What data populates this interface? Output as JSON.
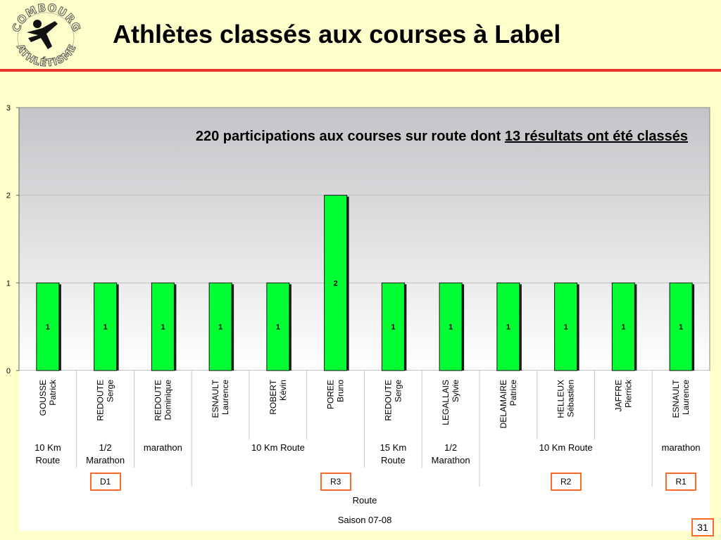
{
  "slide": {
    "title": "Athlètes classés aux courses à Label",
    "logo_text": "COMBOURG ATHLÉTISME",
    "annotation_plain": "220 participations aux courses sur route dont ",
    "annotation_underlined": "13 résultats ont été classés",
    "page_number": "31",
    "colors": {
      "rule": "#e8342a",
      "bar": "#00ff33",
      "background": "#ffffcc",
      "code_border": "#ff6a2a"
    }
  },
  "chart_data": {
    "type": "bar",
    "ylim": [
      0,
      3
    ],
    "yticks": [
      0,
      1,
      2,
      3
    ],
    "grid": true,
    "athletes": [
      {
        "last": "GOUSSE",
        "first": "Patrick",
        "value": 1
      },
      {
        "last": "REDOUTE",
        "first": "Serge",
        "value": 1
      },
      {
        "last": "REDOUTE",
        "first": "Dominique",
        "value": 1
      },
      {
        "last": "ESNAULT",
        "first": "Laurence",
        "value": 1
      },
      {
        "last": "ROBERT",
        "first": "Kévin",
        "value": 1
      },
      {
        "last": "POREE",
        "first": "Bruno",
        "value": 2
      },
      {
        "last": "REDOUTE",
        "first": "Serge",
        "value": 1
      },
      {
        "last": "LEGALLAIS",
        "first": "Sylvie",
        "value": 1
      },
      {
        "last": "DELAMAIRE",
        "first": "Patrice",
        "value": 1
      },
      {
        "last": "HELLEUX",
        "first": "Sébastien",
        "value": 1
      },
      {
        "last": "JAFFRE",
        "first": "Pierrick",
        "value": 1
      },
      {
        "last": "ESNAULT",
        "first": "Laurence",
        "value": 1
      }
    ],
    "race_groups": [
      {
        "lines": [
          "10 Km",
          "Route"
        ],
        "start": 0,
        "end": 0
      },
      {
        "lines": [
          "1/2",
          "Marathon"
        ],
        "start": 1,
        "end": 1
      },
      {
        "lines": [
          "marathon"
        ],
        "start": 2,
        "end": 2
      },
      {
        "lines": [
          "10 Km Route"
        ],
        "start": 3,
        "end": 5
      },
      {
        "lines": [
          "15 Km",
          "Route"
        ],
        "start": 6,
        "end": 6
      },
      {
        "lines": [
          "1/2",
          "Marathon"
        ],
        "start": 7,
        "end": 7
      },
      {
        "lines": [
          "10 Km Route"
        ],
        "start": 8,
        "end": 10
      },
      {
        "lines": [
          "marathon"
        ],
        "start": 11,
        "end": 11
      }
    ],
    "label_groups": [
      {
        "label": "D1",
        "start": 0,
        "end": 2
      },
      {
        "label": "R3",
        "start": 3,
        "end": 7
      },
      {
        "label": "R2",
        "start": 8,
        "end": 10
      },
      {
        "label": "R1",
        "start": 11,
        "end": 11
      }
    ],
    "category_level": "Route",
    "season": "Saison 07-08"
  }
}
